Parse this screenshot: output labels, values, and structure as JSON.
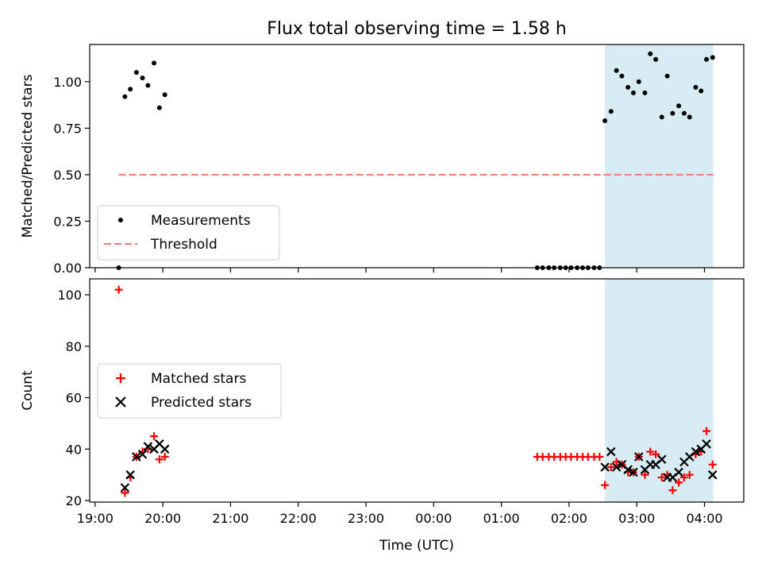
{
  "title": "Flux total observing time = 1.58 h",
  "chart_data": [
    {
      "type": "scatter",
      "ylabel": "Matched/Predicted stars",
      "xlabel": "",
      "x_axis": "Time (UTC), hours since 19:00",
      "xlim": [
        -0.08,
        9.58
      ],
      "ylim": [
        0,
        1.2
      ],
      "yticks": [
        "0.00",
        "0.25",
        "0.50",
        "0.75",
        "1.00"
      ],
      "legend_position": "lower-left",
      "grid": false,
      "shaded_region": {
        "from": 7.53,
        "to": 9.13,
        "color": "#add8e6"
      },
      "threshold": {
        "name": "Threshold",
        "value": 0.5,
        "from": 0.35,
        "to": 9.13,
        "color": "#f08080"
      },
      "series": [
        {
          "name": "Measurements",
          "color": "#000000",
          "points": [
            [
              0.35,
              0.0
            ],
            [
              0.44,
              0.92
            ],
            [
              0.52,
              0.96
            ],
            [
              0.61,
              1.05
            ],
            [
              0.7,
              1.02
            ],
            [
              0.78,
              0.98
            ],
            [
              0.87,
              1.1
            ],
            [
              0.95,
              0.86
            ],
            [
              1.03,
              0.93
            ],
            [
              6.53,
              0.0
            ],
            [
              6.61,
              0.0
            ],
            [
              6.7,
              0.0
            ],
            [
              6.78,
              0.0
            ],
            [
              6.87,
              0.0
            ],
            [
              6.95,
              0.0
            ],
            [
              7.03,
              0.0
            ],
            [
              7.12,
              0.0
            ],
            [
              7.2,
              0.0
            ],
            [
              7.28,
              0.0
            ],
            [
              7.37,
              0.0
            ],
            [
              7.45,
              0.0
            ],
            [
              7.53,
              0.79
            ],
            [
              7.62,
              0.84
            ],
            [
              7.7,
              1.06
            ],
            [
              7.78,
              1.03
            ],
            [
              7.87,
              0.97
            ],
            [
              7.95,
              0.94
            ],
            [
              8.03,
              1.0
            ],
            [
              8.12,
              0.94
            ],
            [
              8.2,
              1.15
            ],
            [
              8.28,
              1.12
            ],
            [
              8.37,
              0.81
            ],
            [
              8.45,
              1.03
            ],
            [
              8.53,
              0.83
            ],
            [
              8.62,
              0.87
            ],
            [
              8.7,
              0.83
            ],
            [
              8.78,
              0.81
            ],
            [
              8.87,
              0.97
            ],
            [
              8.95,
              0.95
            ],
            [
              9.03,
              1.12
            ],
            [
              9.12,
              1.13
            ]
          ]
        }
      ]
    },
    {
      "type": "scatter",
      "ylabel": "Count",
      "xlabel": "Time (UTC)",
      "x_axis": "Time (UTC), hours since 19:00",
      "xlim": [
        -0.08,
        9.58
      ],
      "ylim": [
        19.4,
        106.2
      ],
      "yticks": [
        "20",
        "40",
        "60",
        "80",
        "100"
      ],
      "xticks": [
        "19:00",
        "20:00",
        "21:00",
        "22:00",
        "23:00",
        "00:00",
        "01:00",
        "02:00",
        "03:00",
        "04:00"
      ],
      "legend_position": "center-left",
      "grid": false,
      "shaded_region": {
        "from": 7.53,
        "to": 9.13,
        "color": "#add8e6"
      },
      "series": [
        {
          "name": "Matched stars",
          "color": "#ff0000",
          "marker": "plus",
          "points": [
            [
              0.35,
              102
            ],
            [
              0.44,
              23
            ],
            [
              0.52,
              29
            ],
            [
              0.61,
              37
            ],
            [
              0.7,
              39
            ],
            [
              0.78,
              40
            ],
            [
              0.87,
              45
            ],
            [
              0.95,
              36
            ],
            [
              1.03,
              37
            ],
            [
              6.53,
              37
            ],
            [
              6.61,
              37
            ],
            [
              6.7,
              37
            ],
            [
              6.78,
              37
            ],
            [
              6.87,
              37
            ],
            [
              6.95,
              37
            ],
            [
              7.03,
              37
            ],
            [
              7.12,
              37
            ],
            [
              7.2,
              37
            ],
            [
              7.28,
              37
            ],
            [
              7.37,
              37
            ],
            [
              7.45,
              37
            ],
            [
              7.53,
              26
            ],
            [
              7.62,
              33
            ],
            [
              7.7,
              35
            ],
            [
              7.78,
              34
            ],
            [
              7.87,
              31
            ],
            [
              7.95,
              31
            ],
            [
              8.03,
              37
            ],
            [
              8.12,
              30
            ],
            [
              8.2,
              39
            ],
            [
              8.28,
              38
            ],
            [
              8.37,
              29
            ],
            [
              8.45,
              30
            ],
            [
              8.53,
              24
            ],
            [
              8.62,
              27
            ],
            [
              8.7,
              29
            ],
            [
              8.78,
              30
            ],
            [
              8.87,
              38
            ],
            [
              8.95,
              39
            ],
            [
              9.03,
              47
            ],
            [
              9.12,
              34
            ]
          ]
        },
        {
          "name": "Predicted stars",
          "color": "#000000",
          "marker": "x",
          "points": [
            [
              0.44,
              25
            ],
            [
              0.52,
              30
            ],
            [
              0.61,
              37
            ],
            [
              0.7,
              38
            ],
            [
              0.78,
              41
            ],
            [
              0.87,
              40
            ],
            [
              0.95,
              42
            ],
            [
              1.03,
              40
            ],
            [
              7.53,
              33
            ],
            [
              7.62,
              39
            ],
            [
              7.7,
              33
            ],
            [
              7.78,
              34
            ],
            [
              7.87,
              32
            ],
            [
              7.95,
              31
            ],
            [
              8.03,
              37
            ],
            [
              8.12,
              32
            ],
            [
              8.2,
              34
            ],
            [
              8.28,
              34
            ],
            [
              8.37,
              36
            ],
            [
              8.45,
              29
            ],
            [
              8.53,
              29
            ],
            [
              8.62,
              31
            ],
            [
              8.7,
              35
            ],
            [
              8.78,
              37
            ],
            [
              8.87,
              39
            ],
            [
              8.95,
              40
            ],
            [
              9.03,
              42
            ],
            [
              9.12,
              30
            ]
          ]
        }
      ]
    }
  ]
}
